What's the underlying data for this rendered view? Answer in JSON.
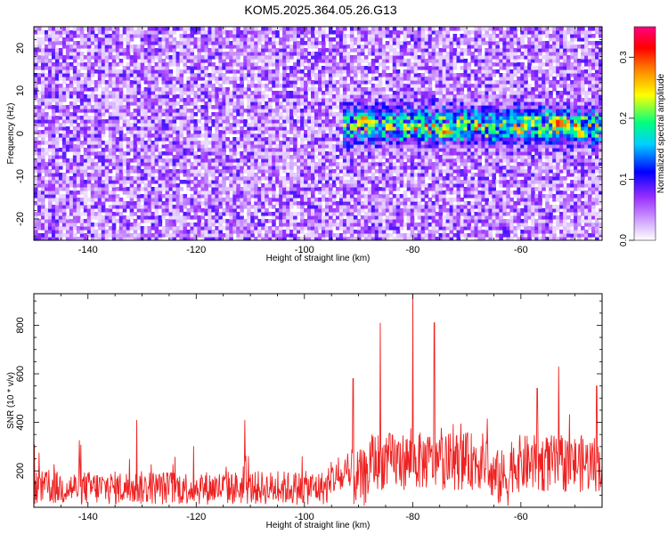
{
  "figure": {
    "title": "KOM5.2025.364.05.26.G13"
  },
  "chart_data": [
    {
      "type": "heatmap",
      "xlabel": "Height of straight line (km)",
      "ylabel": "Frequency (Hz)",
      "xlim": [
        -150,
        -45
      ],
      "ylim": [
        -25,
        25
      ],
      "xticks": [
        -140,
        -120,
        -100,
        -80,
        -60
      ],
      "xtick_labels": [
        "-140",
        "-120",
        "-100",
        "-80",
        "-60"
      ],
      "yticks": [
        -20,
        -10,
        0,
        10,
        20
      ],
      "ytick_labels": [
        "-20",
        "-10",
        "0",
        "10",
        "20"
      ],
      "colorbar": {
        "label": "Normalized spectral amplitude",
        "range": [
          0,
          0.35
        ],
        "ticks": [
          0.0,
          0.1,
          0.2,
          0.3
        ],
        "tick_labels": [
          "0.0",
          "0.1",
          "0.2",
          "0.3"
        ],
        "colors": [
          "#ffffff",
          "#9b30ff",
          "#0000ff",
          "#00d0ff",
          "#00ff80",
          "#ffff00",
          "#ff8000",
          "#ff0000",
          "#ff0080"
        ]
      },
      "features": [
        {
          "description": "background noise",
          "x_range": [
            -150,
            -45
          ],
          "freq_range": [
            -25,
            25
          ],
          "amplitude": 0.06
        },
        {
          "description": "signal band",
          "x_range": [
            -93,
            -45
          ],
          "center_freq": 2,
          "width_hz": 8,
          "amplitude": 0.2
        },
        {
          "description": "peak",
          "x": -53,
          "freq": 2.5,
          "amplitude": 0.33
        },
        {
          "description": "peak",
          "x": -89,
          "freq": 3.5,
          "amplitude": 0.3
        },
        {
          "description": "peak",
          "x": -74,
          "freq": 0.5,
          "amplitude": 0.3
        },
        {
          "description": "peak",
          "x": -49,
          "freq": 0,
          "amplitude": 0.28
        }
      ]
    },
    {
      "type": "line",
      "xlabel": "Height of straight line (km)",
      "ylabel": "SNR (10 * v/v)",
      "xlim": [
        -150,
        -45
      ],
      "ylim": [
        50,
        930
      ],
      "xticks": [
        -140,
        -120,
        -100,
        -80,
        -60
      ],
      "xtick_labels": [
        "-140",
        "-120",
        "-100",
        "-80",
        "-60"
      ],
      "yticks": [
        200,
        400,
        600,
        800
      ],
      "ytick_labels": [
        "200",
        "400",
        "600",
        "800"
      ],
      "color": "#ee2222",
      "notable_peaks": [
        {
          "x": -80,
          "y": 930
        },
        {
          "x": -86,
          "y": 810
        },
        {
          "x": -76,
          "y": 810
        },
        {
          "x": -53,
          "y": 630
        },
        {
          "x": -91,
          "y": 580
        },
        {
          "x": -57,
          "y": 540
        },
        {
          "x": -46,
          "y": 550
        },
        {
          "x": -131,
          "y": 410
        },
        {
          "x": -111,
          "y": 410
        }
      ],
      "baseline_mean": 130,
      "baseline_noise": 70
    }
  ]
}
